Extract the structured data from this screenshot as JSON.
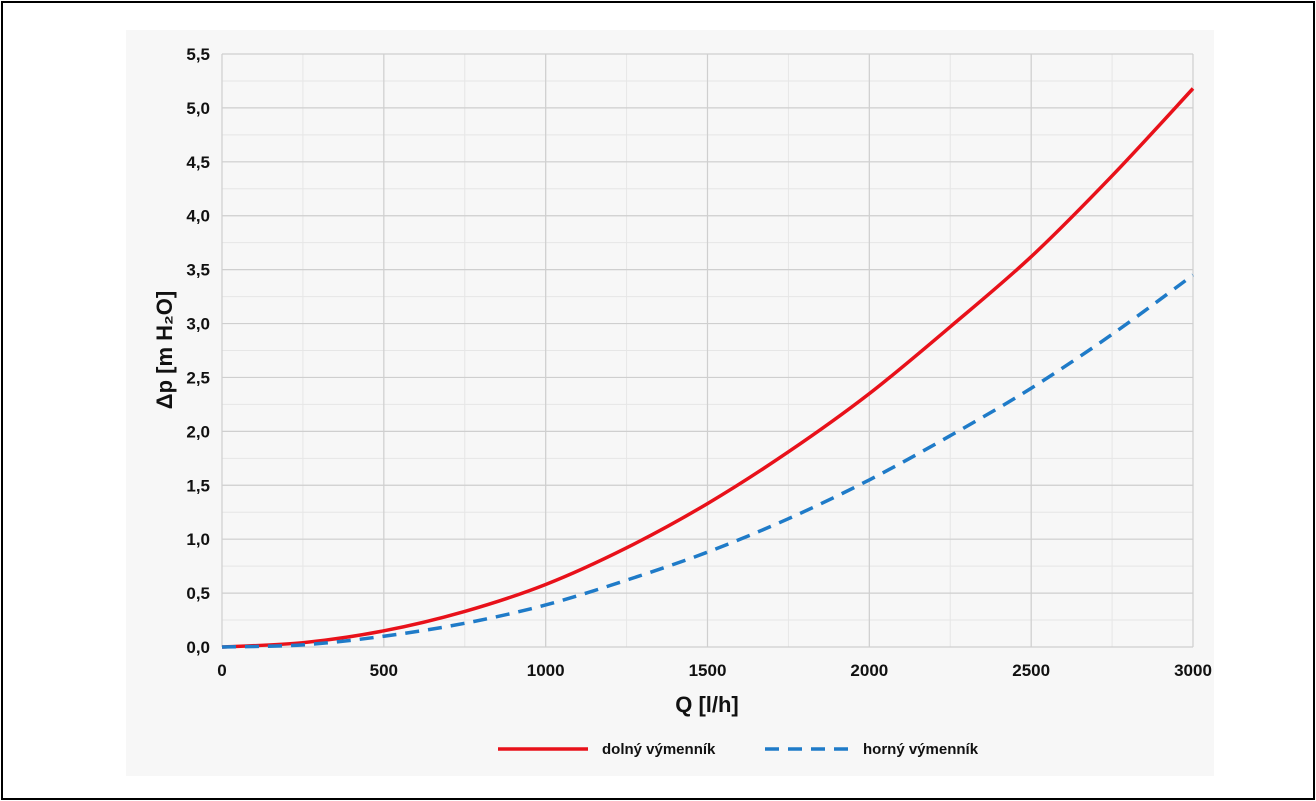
{
  "chart_data": {
    "type": "line",
    "xlabel": "Q [l/h]",
    "ylabel": "Δp [m H₂O]",
    "xlim": [
      0,
      3000
    ],
    "ylim": [
      0,
      5.5
    ],
    "x_ticks": [
      "0",
      "500",
      "1000",
      "1500",
      "2000",
      "2500",
      "3000"
    ],
    "y_ticks": [
      "0,0",
      "0,5",
      "1,0",
      "1,5",
      "2,0",
      "2,5",
      "3,0",
      "3,5",
      "4,0",
      "4,5",
      "5,0",
      "5,5"
    ],
    "grid": true,
    "legend_position": "bottom",
    "x": [
      0,
      250,
      500,
      750,
      1000,
      1250,
      1500,
      1750,
      2000,
      2250,
      2500,
      2750,
      3000
    ],
    "series": [
      {
        "name": "dolný výmenník",
        "color": "#e8111a",
        "style": "solid",
        "values": [
          0.0,
          0.04,
          0.15,
          0.33,
          0.58,
          0.92,
          1.33,
          1.81,
          2.35,
          2.97,
          3.62,
          4.37,
          5.18
        ]
      },
      {
        "name": "horný výmenník",
        "color": "#1f7bc8",
        "style": "dashed",
        "values": [
          0.0,
          0.02,
          0.1,
          0.22,
          0.39,
          0.62,
          0.88,
          1.19,
          1.55,
          1.96,
          2.4,
          2.9,
          3.45
        ]
      }
    ]
  }
}
